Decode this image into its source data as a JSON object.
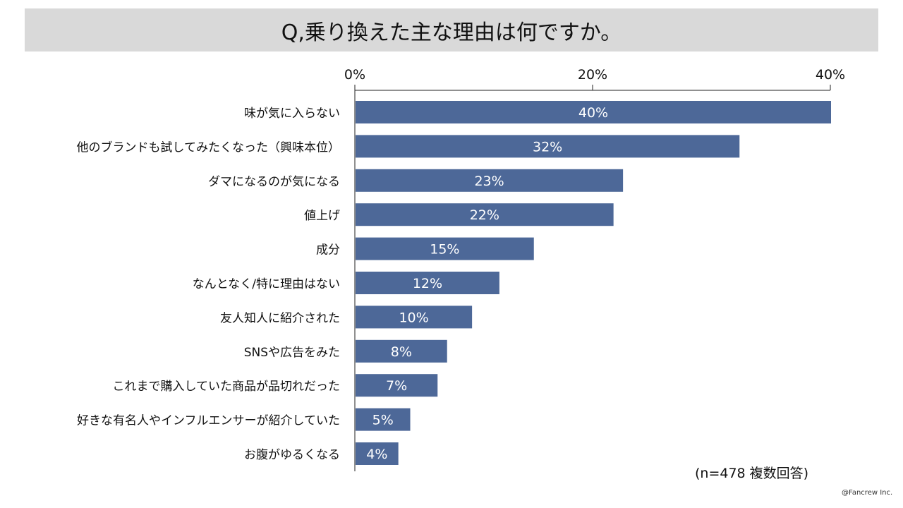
{
  "chart_data": {
    "type": "bar",
    "orientation": "horizontal",
    "title": "Q,乗り換えた主な理由は何ですか。",
    "categories": [
      "味が気に入らない",
      "他のブランドも試してみたくなった（興味本位）",
      "ダマになるのが気になる",
      "値上げ",
      "成分",
      "なんとなく/特に理由はない",
      "友人知人に紹介された",
      "SNSや広告をみた",
      "これまで購入していた商品が品切れだった",
      "好きな有名人やインフルエンサーが紹介していた",
      "お腹がゆるくなる"
    ],
    "values": [
      40,
      32.3,
      22.5,
      21.7,
      15.0,
      12.1,
      9.8,
      7.7,
      6.9,
      4.6,
      3.6
    ],
    "data_labels": [
      "40%",
      "32%",
      "23%",
      "22%",
      "15%",
      "12%",
      "10%",
      "8%",
      "7%",
      "5%",
      "4%"
    ],
    "xlim": [
      0,
      40
    ],
    "x_ticks": [
      0,
      20,
      40
    ],
    "x_tick_labels": [
      "0%",
      "20%",
      "40%"
    ],
    "axis_position": "top",
    "grid": false,
    "legend": "none",
    "bar_color": "#4d6898",
    "xlabel": "",
    "ylabel": ""
  },
  "footnote": "(n=478 複数回答)",
  "copyright": "@Fancrew Inc."
}
